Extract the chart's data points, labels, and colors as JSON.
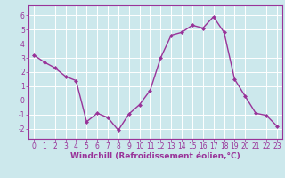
{
  "x": [
    0,
    1,
    2,
    3,
    4,
    5,
    6,
    7,
    8,
    9,
    10,
    11,
    12,
    13,
    14,
    15,
    16,
    17,
    18,
    19,
    20,
    21,
    22,
    23
  ],
  "y": [
    3.2,
    2.7,
    2.3,
    1.7,
    1.4,
    -1.5,
    -0.9,
    -1.2,
    -2.1,
    -0.95,
    -0.3,
    0.7,
    3.0,
    4.6,
    4.8,
    5.3,
    5.1,
    5.9,
    4.8,
    1.5,
    0.3,
    -0.9,
    -1.05,
    -1.8
  ],
  "line_color": "#993399",
  "marker": "D",
  "marker_size": 2.0,
  "background_color": "#cce8ec",
  "grid_color": "#ffffff",
  "xlabel": "Windchill (Refroidissement éolien,°C)",
  "xlim": [
    -0.5,
    23.5
  ],
  "ylim": [
    -2.7,
    6.7
  ],
  "yticks": [
    -2,
    -1,
    0,
    1,
    2,
    3,
    4,
    5,
    6
  ],
  "xticks": [
    0,
    1,
    2,
    3,
    4,
    5,
    6,
    7,
    8,
    9,
    10,
    11,
    12,
    13,
    14,
    15,
    16,
    17,
    18,
    19,
    20,
    21,
    22,
    23
  ],
  "tick_color": "#993399",
  "label_color": "#993399",
  "spine_color": "#993399",
  "xlabel_fontsize": 6.5,
  "tick_fontsize": 5.5,
  "linewidth": 1.0
}
